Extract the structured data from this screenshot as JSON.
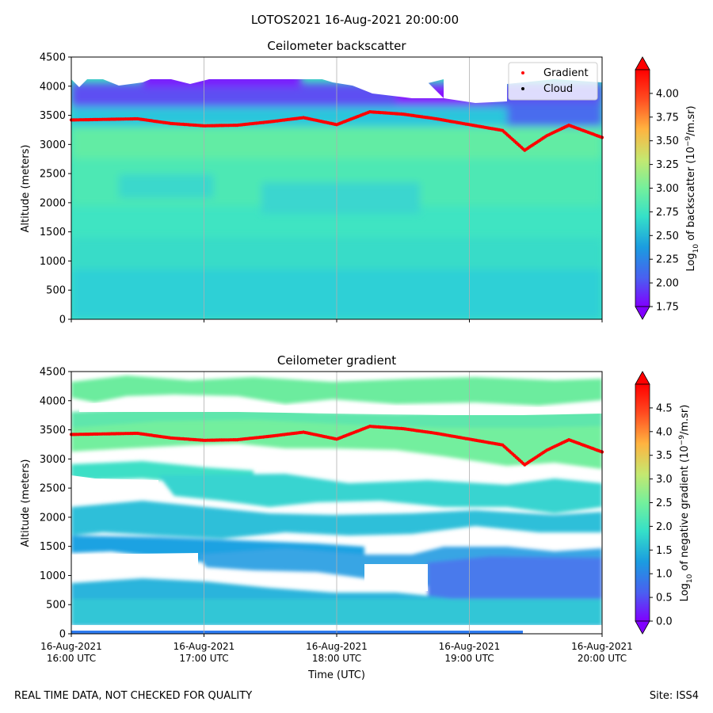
{
  "suptitle": "LOTOS2021 16-Aug-2021 20:00:00",
  "footer": {
    "left": "REAL TIME DATA, NOT CHECKED FOR QUALITY",
    "right": "Site: ISS4"
  },
  "colors": {
    "colormap": [
      "#8000ff",
      "#4a5ff0",
      "#1b9ce0",
      "#35e0c8",
      "#74f09c",
      "#c4e870",
      "#ffb340",
      "#ff4a20",
      "#ff0000"
    ],
    "cloud_marker": "#000000",
    "gradient_marker": "#ff0000",
    "gridline": "#b0b0b0"
  },
  "chart_data": [
    {
      "type": "heatmap",
      "title": "Ceilometer backscatter",
      "ylabel": "Altitude (meters)",
      "xlabel": "",
      "xlim": [
        "16-Aug-2021 16:00 UTC",
        "16-Aug-2021 20:00 UTC"
      ],
      "ylim": [
        0,
        4500
      ],
      "yticks": [
        "0",
        "500",
        "1000",
        "1500",
        "2000",
        "2500",
        "3000",
        "3500",
        "4000",
        "4500"
      ],
      "grid": "vertical at hourly ticks",
      "legend": {
        "placement": "top-right",
        "entries": [
          {
            "label": "Gradient",
            "marker": "red dot"
          },
          {
            "label": "Cloud",
            "marker": "black dot"
          }
        ]
      },
      "colorbar": {
        "label_prefix": "Log",
        "label_sub": "10",
        "label_mid": " of backscatter (10",
        "label_sup": "−9",
        "label_suffix": "/m.sr)",
        "range": [
          1.75,
          4.25
        ],
        "ticks": [
          "1.75",
          "2.00",
          "2.25",
          "2.50",
          "2.75",
          "3.00",
          "3.25",
          "3.50",
          "3.75",
          "4.00"
        ]
      },
      "gradient_points": [
        {
          "t": "16:00",
          "alt": 3420
        },
        {
          "t": "16:15",
          "alt": 3430
        },
        {
          "t": "16:30",
          "alt": 3440
        },
        {
          "t": "16:45",
          "alt": 3360
        },
        {
          "t": "17:00",
          "alt": 3320
        },
        {
          "t": "17:15",
          "alt": 3330
        },
        {
          "t": "17:30",
          "alt": 3390
        },
        {
          "t": "17:45",
          "alt": 3460
        },
        {
          "t": "18:00",
          "alt": 3340
        },
        {
          "t": "18:15",
          "alt": 3560
        },
        {
          "t": "18:30",
          "alt": 3520
        },
        {
          "t": "18:45",
          "alt": 3440
        },
        {
          "t": "19:00",
          "alt": 3340
        },
        {
          "t": "19:15",
          "alt": 3240
        },
        {
          "t": "19:25",
          "alt": 2900
        },
        {
          "t": "19:35",
          "alt": 3150
        },
        {
          "t": "19:45",
          "alt": 3330
        },
        {
          "t": "20:00",
          "alt": 3120
        }
      ]
    },
    {
      "type": "heatmap",
      "title": "Ceilometer gradient",
      "ylabel": "Altitude (meters)",
      "xlabel": "Time (UTC)",
      "xlim": [
        "16-Aug-2021 16:00 UTC",
        "16-Aug-2021 20:00 UTC"
      ],
      "ylim": [
        0,
        4500
      ],
      "yticks": [
        "0",
        "500",
        "1000",
        "1500",
        "2000",
        "2500",
        "3000",
        "3500",
        "4000",
        "4500"
      ],
      "xticks": [
        {
          "date": "16-Aug-2021",
          "time": "16:00 UTC"
        },
        {
          "date": "16-Aug-2021",
          "time": "17:00 UTC"
        },
        {
          "date": "16-Aug-2021",
          "time": "18:00 UTC"
        },
        {
          "date": "16-Aug-2021",
          "time": "19:00 UTC"
        },
        {
          "date": "16-Aug-2021",
          "time": "20:00 UTC"
        }
      ],
      "grid": "vertical at hourly ticks",
      "colorbar": {
        "label_prefix": "Log",
        "label_sub": "10",
        "label_mid": " of negative gradient (10",
        "label_sup": "−9",
        "label_suffix": "/m.sr)",
        "range": [
          0.0,
          5.0
        ],
        "ticks": [
          "0.0",
          "0.5",
          "1.0",
          "1.5",
          "2.0",
          "2.5",
          "3.0",
          "3.5",
          "4.0",
          "4.5"
        ]
      }
    }
  ]
}
